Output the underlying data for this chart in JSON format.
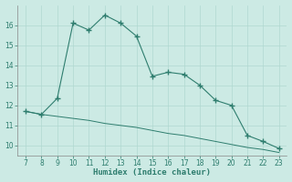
{
  "xlabel": "Humidex (Indice chaleur)",
  "x": [
    7,
    8,
    9,
    10,
    11,
    12,
    13,
    14,
    15,
    16,
    17,
    18,
    19,
    20,
    21,
    22,
    23
  ],
  "y_main": [
    11.7,
    11.55,
    12.35,
    16.1,
    15.75,
    16.5,
    16.1,
    15.45,
    13.45,
    13.65,
    13.55,
    13.0,
    12.25,
    12.0,
    10.5,
    10.2,
    9.85
  ],
  "y_trend": [
    11.7,
    11.55,
    11.45,
    11.35,
    11.25,
    11.1,
    11.0,
    10.9,
    10.75,
    10.6,
    10.5,
    10.35,
    10.2,
    10.05,
    9.9,
    9.8,
    9.65
  ],
  "line_color": "#2e7d6e",
  "bg_color": "#cceae4",
  "grid_color": "#b0d8d0",
  "xlim": [
    6.5,
    23.5
  ],
  "ylim": [
    9.5,
    17.0
  ],
  "yticks": [
    10,
    11,
    12,
    13,
    14,
    15,
    16
  ],
  "xticks": [
    7,
    8,
    9,
    10,
    11,
    12,
    13,
    14,
    15,
    16,
    17,
    18,
    19,
    20,
    21,
    22,
    23
  ],
  "tick_fontsize": 5.5,
  "xlabel_fontsize": 6.5
}
